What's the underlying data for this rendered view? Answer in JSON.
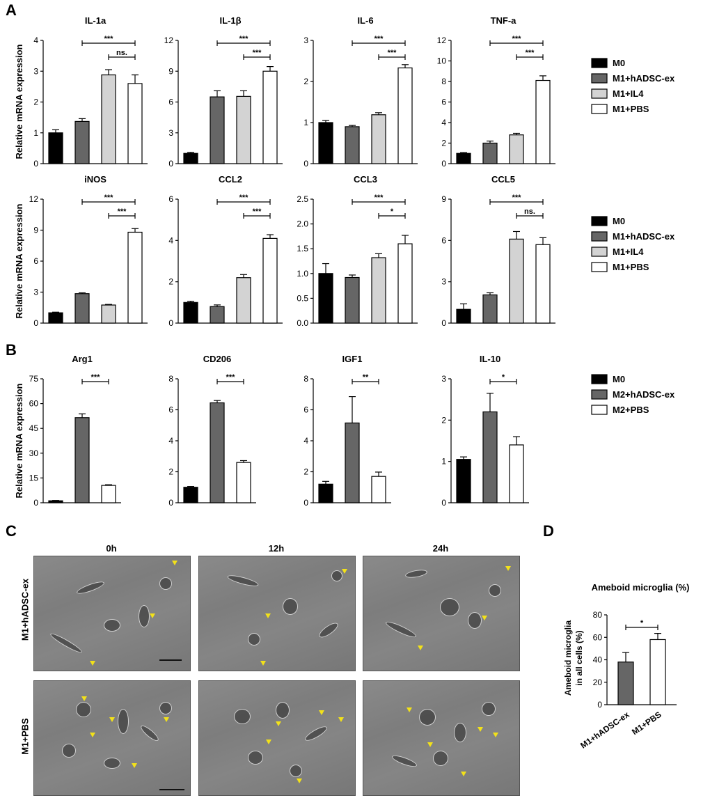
{
  "panel_letters": {
    "A": "A",
    "B": "B",
    "C": "C",
    "D": "D"
  },
  "legends": {
    "A": [
      "M0",
      "M1+hADSC-ex",
      "M1+IL4",
      "M1+PBS"
    ],
    "B": [
      "M0",
      "M2+hADSC-ex",
      "M2+PBS"
    ]
  },
  "colors": {
    "M0": "#000000",
    "treat": "#666666",
    "IL4": "#d3d3d3",
    "PBS": "#ffffff"
  },
  "ylabel": "Relative mRNA expression",
  "panelC": {
    "columns": [
      "0h",
      "12h",
      "24h"
    ],
    "rows": [
      "M1+hADSC-ex",
      "M1+PBS"
    ]
  },
  "chart_data": [
    {
      "type": "bar",
      "title": "IL-1a",
      "ylim": [
        0,
        4
      ],
      "yticks": [
        "0",
        "1",
        "2",
        "3",
        "4"
      ],
      "series": [
        {
          "values": [
            1.0,
            1.37,
            2.88,
            2.6
          ],
          "errors": [
            0.1,
            0.09,
            0.17,
            0.28
          ]
        }
      ],
      "sig": [
        {
          "from": 1,
          "to": 3,
          "label": "***"
        },
        {
          "from": 2,
          "to": 3,
          "label": "ns."
        }
      ]
    },
    {
      "type": "bar",
      "title": "IL-1β",
      "ylim": [
        0,
        12
      ],
      "yticks": [
        "0",
        "3",
        "6",
        "9",
        "12"
      ],
      "series": [
        {
          "values": [
            1.0,
            6.5,
            6.55,
            9.0
          ],
          "errors": [
            0.1,
            0.6,
            0.55,
            0.45
          ]
        }
      ],
      "sig": [
        {
          "from": 1,
          "to": 3,
          "label": "***"
        },
        {
          "from": 2,
          "to": 3,
          "label": "***"
        }
      ]
    },
    {
      "type": "bar",
      "title": "IL-6",
      "ylim": [
        0,
        3
      ],
      "yticks": [
        "0",
        "1",
        "2",
        "3"
      ],
      "series": [
        {
          "values": [
            1.0,
            0.9,
            1.19,
            2.33
          ],
          "errors": [
            0.05,
            0.03,
            0.05,
            0.08
          ]
        }
      ],
      "sig": [
        {
          "from": 1,
          "to": 3,
          "label": "***"
        },
        {
          "from": 2,
          "to": 3,
          "label": "***"
        }
      ]
    },
    {
      "type": "bar",
      "title": "TNF-a",
      "ylim": [
        0,
        12
      ],
      "yticks": [
        "0",
        "2",
        "4",
        "6",
        "8",
        "10",
        "12"
      ],
      "series": [
        {
          "values": [
            1.0,
            2.0,
            2.8,
            8.1
          ],
          "errors": [
            0.08,
            0.2,
            0.15,
            0.45
          ]
        }
      ],
      "sig": [
        {
          "from": 1,
          "to": 3,
          "label": "***"
        },
        {
          "from": 2,
          "to": 3,
          "label": "***"
        }
      ]
    },
    {
      "type": "bar",
      "title": "iNOS",
      "ylim": [
        0,
        12
      ],
      "yticks": [
        "0",
        "3",
        "6",
        "9",
        "12"
      ],
      "series": [
        {
          "values": [
            1.0,
            2.85,
            1.75,
            8.8
          ],
          "errors": [
            0.06,
            0.08,
            0.06,
            0.35
          ]
        }
      ],
      "sig": [
        {
          "from": 1,
          "to": 3,
          "label": "***"
        },
        {
          "from": 2,
          "to": 3,
          "label": "***"
        }
      ]
    },
    {
      "type": "bar",
      "title": "CCL2",
      "ylim": [
        0,
        6
      ],
      "yticks": [
        "0",
        "2",
        "4",
        "6"
      ],
      "series": [
        {
          "values": [
            1.0,
            0.8,
            2.2,
            4.1
          ],
          "errors": [
            0.06,
            0.08,
            0.15,
            0.18
          ]
        }
      ],
      "sig": [
        {
          "from": 1,
          "to": 3,
          "label": "***"
        },
        {
          "from": 2,
          "to": 3,
          "label": "***"
        }
      ]
    },
    {
      "type": "bar",
      "title": "CCL3",
      "ylim": [
        0,
        2.5
      ],
      "yticks": [
        "0.0",
        "0.5",
        "1.0",
        "1.5",
        "2.0",
        "2.5"
      ],
      "series": [
        {
          "values": [
            1.0,
            0.92,
            1.32,
            1.6
          ],
          "errors": [
            0.2,
            0.05,
            0.08,
            0.17
          ]
        }
      ],
      "sig": [
        {
          "from": 1,
          "to": 3,
          "label": "***"
        },
        {
          "from": 2,
          "to": 3,
          "label": "*"
        }
      ]
    },
    {
      "type": "bar",
      "title": "CCL5",
      "ylim": [
        0,
        9
      ],
      "yticks": [
        "0",
        "3",
        "6",
        "9"
      ],
      "series": [
        {
          "values": [
            1.0,
            2.05,
            6.1,
            5.7
          ],
          "errors": [
            0.4,
            0.15,
            0.55,
            0.5
          ]
        }
      ],
      "sig": [
        {
          "from": 1,
          "to": 3,
          "label": "***"
        },
        {
          "from": 2,
          "to": 3,
          "label": "ns."
        }
      ]
    },
    {
      "type": "bar",
      "title": "Arg1",
      "ylim": [
        0,
        75
      ],
      "yticks": [
        "0",
        "15",
        "30",
        "45",
        "60",
        "75"
      ],
      "series": [
        {
          "values": [
            1.2,
            51.5,
            10.5
          ],
          "errors": [
            0.2,
            2.3,
            0.4
          ]
        }
      ],
      "sig": [
        {
          "from": 1,
          "to": 2,
          "label": "***"
        }
      ]
    },
    {
      "type": "bar",
      "title": "CD206",
      "ylim": [
        0,
        8
      ],
      "yticks": [
        "0",
        "2",
        "4",
        "6",
        "8"
      ],
      "series": [
        {
          "values": [
            1.0,
            6.45,
            2.6
          ],
          "errors": [
            0.05,
            0.15,
            0.12
          ]
        }
      ],
      "sig": [
        {
          "from": 1,
          "to": 2,
          "label": "***"
        }
      ]
    },
    {
      "type": "bar",
      "title": "IGF1",
      "ylim": [
        0,
        8
      ],
      "yticks": [
        "0",
        "2",
        "4",
        "6",
        "8"
      ],
      "series": [
        {
          "values": [
            1.2,
            5.15,
            1.7
          ],
          "errors": [
            0.18,
            1.7,
            0.28
          ]
        }
      ],
      "sig": [
        {
          "from": 1,
          "to": 2,
          "label": "**"
        }
      ]
    },
    {
      "type": "bar",
      "title": "IL-10",
      "ylim": [
        0,
        3
      ],
      "yticks": [
        "0",
        "1",
        "2",
        "3"
      ],
      "series": [
        {
          "values": [
            1.05,
            2.2,
            1.4
          ],
          "errors": [
            0.06,
            0.45,
            0.2
          ]
        }
      ],
      "sig": [
        {
          "from": 1,
          "to": 2,
          "label": "*"
        }
      ]
    },
    {
      "type": "bar",
      "title": "Ameboid  microglia (%)",
      "ylabel": "Ameboid  microglia in all cells  (%)",
      "categories": [
        "M1+hADSC-ex",
        "M1+PBS"
      ],
      "ylim": [
        0,
        80
      ],
      "yticks": [
        "0",
        "20",
        "40",
        "60",
        "80"
      ],
      "series": [
        {
          "values": [
            38,
            58
          ],
          "errors": [
            8.5,
            5.5
          ]
        }
      ],
      "sig": [
        {
          "from": 0,
          "to": 1,
          "label": "*"
        }
      ]
    }
  ]
}
